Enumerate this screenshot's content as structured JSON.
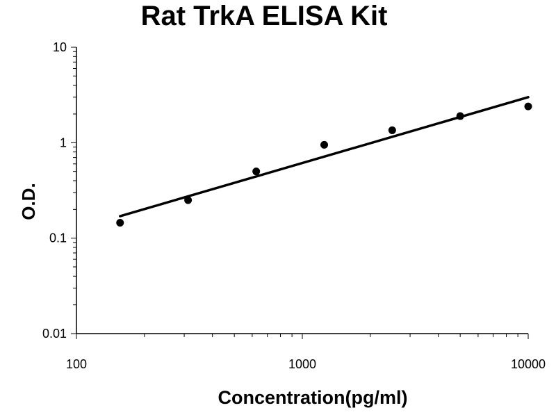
{
  "chart_data": {
    "type": "scatter",
    "title": "Rat TrkA ELISA Kit",
    "xlabel": "Concentration(pg/ml)",
    "ylabel": "O.D.",
    "x_scale": "log",
    "y_scale": "log",
    "xlim": [
      100,
      10000
    ],
    "ylim": [
      0.01,
      10
    ],
    "x_ticks": [
      "100",
      "1000",
      "10000"
    ],
    "y_ticks": [
      "0.01",
      "0.1",
      "1",
      "10"
    ],
    "grid": false,
    "legend": "none",
    "series": [
      {
        "x": [
          156,
          312,
          625,
          1250,
          2500,
          5000,
          10000
        ],
        "y": [
          0.145,
          0.25,
          0.5,
          0.95,
          1.35,
          1.9,
          2.4
        ]
      }
    ],
    "trendline": {
      "type": "power",
      "x": [
        156,
        10000
      ],
      "y": [
        0.17,
        3.0
      ]
    },
    "colors": {
      "points": "#000000",
      "line": "#000000",
      "axis": "#000000"
    }
  }
}
